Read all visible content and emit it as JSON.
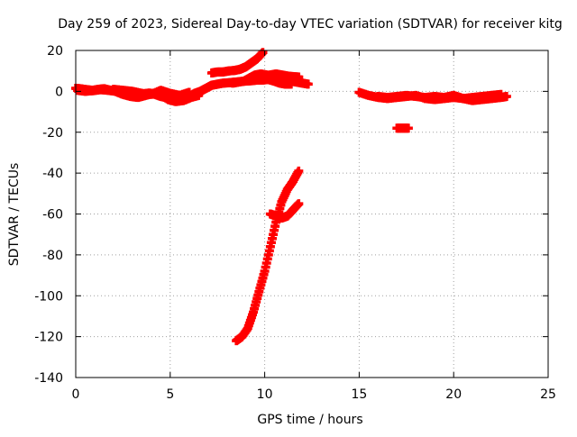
{
  "chart_data": {
    "type": "scatter",
    "title": "Day 259 of 2023, Sidereal Day-to-day VTEC variation (SDTVAR) for receiver kitg",
    "xlabel": "GPS time / hours",
    "ylabel": "SDTVAR / TECUs",
    "xlim": [
      0,
      25
    ],
    "ylim": [
      -140,
      20
    ],
    "xticks": [
      0,
      5,
      10,
      15,
      20,
      25
    ],
    "yticks": [
      20,
      0,
      -20,
      -40,
      -60,
      -80,
      -100,
      -120,
      -140
    ],
    "xtick_labels": [
      "0",
      "5",
      "10",
      "15",
      "20",
      "25"
    ],
    "ytick_labels": [
      "20",
      "0",
      "-20",
      "-40",
      "-60",
      "-80",
      "-100",
      "-120",
      "-140"
    ],
    "grid": true,
    "legend": "none",
    "marker": "plus",
    "color": "#ff0000",
    "series": [
      {
        "x": [
          0.0,
          0.3,
          0.6,
          0.9,
          1.2,
          1.5,
          1.8,
          2.1,
          2.4,
          2.7,
          3.0,
          3.3,
          3.6,
          3.9,
          4.2,
          4.5,
          4.8,
          5.1,
          5.4,
          5.7,
          6.0,
          6.3,
          6.6,
          6.9,
          7.2,
          7.5,
          7.8,
          8.1,
          8.4,
          8.7,
          9.0,
          9.3,
          9.6,
          9.9,
          10.2,
          10.5,
          10.8,
          11.1,
          11.4,
          11.7,
          12.0,
          12.3
        ],
        "y": [
          1.5,
          1.2,
          0.8,
          0.5,
          1.0,
          1.3,
          0.6,
          0.2,
          -0.5,
          -1.0,
          -1.5,
          -2.0,
          -1.2,
          -0.8,
          -1.5,
          -2.5,
          -3.0,
          -3.5,
          -4.0,
          -3.5,
          -2.5,
          -1.0,
          0.0,
          1.5,
          3.0,
          3.5,
          4.0,
          4.2,
          4.5,
          4.8,
          5.0,
          5.2,
          5.5,
          5.5,
          5.8,
          5.0,
          5.5,
          5.2,
          5.0,
          4.5,
          4.0,
          3.5
        ]
      },
      {
        "x": [
          0.1,
          0.5,
          0.9,
          1.3,
          1.7,
          2.1,
          2.5,
          2.9,
          3.3,
          3.7,
          4.1,
          4.5,
          4.9,
          5.3,
          5.7,
          6.1,
          6.5
        ],
        "y": [
          0.5,
          0.0,
          0.3,
          0.8,
          0.5,
          0.0,
          -1.5,
          -2.5,
          -3.0,
          -2.0,
          -1.0,
          -1.8,
          -4.0,
          -5.0,
          -4.5,
          -3.0,
          -2.0
        ]
      },
      {
        "x": [
          2.0,
          2.5,
          3.0,
          3.5,
          4.0,
          4.5,
          5.0,
          5.5,
          6.0
        ],
        "y": [
          1.0,
          0.5,
          0.0,
          -1.0,
          -1.5,
          0.5,
          -1.0,
          -2.0,
          -0.5
        ]
      },
      {
        "x": [
          7.2,
          7.5,
          7.8,
          8.1,
          8.4,
          8.7,
          9.0,
          9.3,
          9.6,
          9.9
        ],
        "y": [
          9.0,
          9.5,
          9.5,
          10.0,
          10.2,
          10.8,
          12.0,
          14.0,
          16.0,
          19.0
        ]
      },
      {
        "x": [
          8.3,
          8.6,
          8.9,
          9.2,
          9.5,
          9.8,
          10.1
        ],
        "y": [
          4.0,
          4.5,
          5.0,
          6.5,
          8.0,
          8.5,
          8.0
        ]
      },
      {
        "x": [
          9.4,
          9.7,
          10.0,
          10.3,
          10.6,
          10.9,
          11.2,
          11.5,
          11.8
        ],
        "y": [
          6.0,
          6.5,
          7.5,
          8.0,
          8.5,
          8.0,
          7.5,
          7.2,
          7.0
        ]
      },
      {
        "x": [
          10.5,
          10.8,
          11.1,
          11.4
        ],
        "y": [
          5.0,
          4.0,
          3.5,
          3.5
        ]
      },
      {
        "x": [
          8.5,
          8.8,
          9.1,
          9.4,
          9.7,
          10.0,
          10.3,
          10.6,
          10.9,
          11.2,
          11.5,
          11.8
        ],
        "y": [
          -122,
          -120,
          -116,
          -108,
          -98,
          -88,
          -76,
          -64,
          -54,
          -48,
          -44,
          -39
        ]
      },
      {
        "x": [
          10.3,
          10.6,
          10.9,
          11.2,
          11.5,
          11.8
        ],
        "y": [
          -60,
          -61,
          -62,
          -61,
          -58,
          -55
        ]
      },
      {
        "x": [
          15.0,
          15.5,
          16.0,
          16.5,
          17.0,
          17.5,
          18.0,
          18.5,
          19.0,
          19.5,
          20.0,
          20.5,
          21.0,
          21.5,
          22.0,
          22.5,
          22.8
        ],
        "y": [
          -0.5,
          -2.0,
          -3.0,
          -3.5,
          -3.0,
          -2.5,
          -2.0,
          -3.5,
          -4.0,
          -3.5,
          -3.0,
          -3.5,
          -4.5,
          -4.0,
          -3.5,
          -3.0,
          -2.5
        ]
      },
      {
        "x": [
          16.0,
          16.5,
          17.0,
          17.5,
          18.0,
          18.5,
          19.0,
          19.5,
          20.0,
          20.5,
          21.0,
          21.5,
          22.0,
          22.5
        ],
        "y": [
          -2.5,
          -3.0,
          -2.5,
          -2.0,
          -2.5,
          -3.0,
          -2.5,
          -3.0,
          -2.0,
          -3.5,
          -3.0,
          -2.5,
          -2.0,
          -1.5
        ]
      },
      {
        "x": [
          17.0,
          17.3,
          17.6
        ],
        "y": [
          -18,
          -18,
          -18
        ]
      }
    ]
  }
}
